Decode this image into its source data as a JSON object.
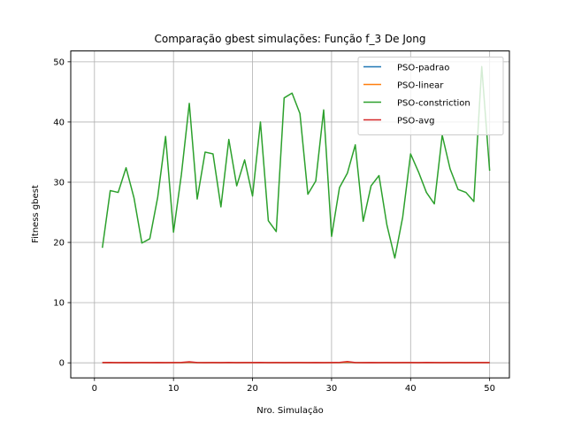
{
  "chart_data": {
    "type": "line",
    "title": "Comparação gbest simulações: Função f_3 De Jong",
    "xlabel": "Nro. Simulação",
    "ylabel": "Fitness gbest",
    "xlim": [
      -3,
      52.5
    ],
    "ylim": [
      -2.5,
      51.8
    ],
    "xticks": [
      0,
      10,
      20,
      30,
      40,
      50
    ],
    "yticks": [
      0,
      10,
      20,
      30,
      40,
      50
    ],
    "grid": true,
    "legend_position": "top-right",
    "series": [
      {
        "name": "PSO-padrao",
        "color": "#1f77b4",
        "x": [
          1,
          2,
          3,
          4,
          5,
          6,
          7,
          8,
          9,
          10,
          11,
          12,
          13,
          14,
          15,
          16,
          17,
          18,
          19,
          20,
          21,
          22,
          23,
          24,
          25,
          26,
          27,
          28,
          29,
          30,
          31,
          32,
          33,
          34,
          35,
          36,
          37,
          38,
          39,
          40,
          41,
          42,
          43,
          44,
          45,
          46,
          47,
          48,
          49,
          50
        ],
        "values": [
          0.02,
          0.02,
          0.02,
          0.02,
          0.02,
          0.02,
          0.02,
          0.02,
          0.02,
          0.02,
          0.02,
          0.05,
          0.02,
          0.02,
          0.02,
          0.02,
          0.02,
          0.02,
          0.02,
          0.02,
          0.02,
          0.02,
          0.02,
          0.02,
          0.02,
          0.02,
          0.02,
          0.02,
          0.02,
          0.02,
          0.02,
          0.05,
          0.02,
          0.02,
          0.02,
          0.02,
          0.02,
          0.02,
          0.02,
          0.02,
          0.02,
          0.02,
          0.02,
          0.02,
          0.02,
          0.02,
          0.02,
          0.02,
          0.02,
          0.02
        ]
      },
      {
        "name": "PSO-linear",
        "color": "#ff7f0e",
        "x": [
          1,
          2,
          3,
          4,
          5,
          6,
          7,
          8,
          9,
          10,
          11,
          12,
          13,
          14,
          15,
          16,
          17,
          18,
          19,
          20,
          21,
          22,
          23,
          24,
          25,
          26,
          27,
          28,
          29,
          30,
          31,
          32,
          33,
          34,
          35,
          36,
          37,
          38,
          39,
          40,
          41,
          42,
          43,
          44,
          45,
          46,
          47,
          48,
          49,
          50
        ],
        "values": [
          0.03,
          0.03,
          0.03,
          0.03,
          0.03,
          0.03,
          0.03,
          0.03,
          0.03,
          0.03,
          0.03,
          0.08,
          0.03,
          0.03,
          0.03,
          0.03,
          0.03,
          0.03,
          0.03,
          0.03,
          0.03,
          0.03,
          0.03,
          0.03,
          0.03,
          0.03,
          0.03,
          0.03,
          0.03,
          0.03,
          0.03,
          0.1,
          0.03,
          0.03,
          0.03,
          0.03,
          0.03,
          0.03,
          0.03,
          0.03,
          0.03,
          0.03,
          0.03,
          0.03,
          0.03,
          0.03,
          0.03,
          0.03,
          0.03,
          0.03
        ]
      },
      {
        "name": "PSO-constriction",
        "color": "#2ca02c",
        "x": [
          1,
          2,
          3,
          4,
          5,
          6,
          7,
          8,
          9,
          10,
          11,
          12,
          13,
          14,
          15,
          16,
          17,
          18,
          19,
          20,
          21,
          22,
          23,
          24,
          25,
          26,
          27,
          28,
          29,
          30,
          31,
          32,
          33,
          34,
          35,
          36,
          37,
          38,
          39,
          40,
          41,
          42,
          43,
          44,
          45,
          46,
          47,
          48,
          49,
          50
        ],
        "values": [
          19.1,
          28.6,
          28.3,
          32.4,
          27.4,
          19.9,
          20.6,
          27.5,
          37.6,
          21.7,
          31.3,
          43.1,
          27.2,
          35.0,
          34.7,
          25.9,
          37.1,
          29.4,
          33.7,
          27.7,
          40.0,
          23.6,
          21.8,
          44.0,
          44.8,
          41.4,
          28.0,
          30.2,
          42.0,
          21.0,
          29.1,
          31.5,
          36.2,
          23.5,
          29.4,
          31.1,
          22.9,
          17.4,
          24.2,
          34.7,
          31.7,
          28.3,
          26.4,
          37.8,
          32.2,
          28.8,
          28.3,
          26.8,
          49.2,
          31.9
        ]
      },
      {
        "name": "PSO-avg",
        "color": "#d62728",
        "x": [
          1,
          2,
          3,
          4,
          5,
          6,
          7,
          8,
          9,
          10,
          11,
          12,
          13,
          14,
          15,
          16,
          17,
          18,
          19,
          20,
          21,
          22,
          23,
          24,
          25,
          26,
          27,
          28,
          29,
          30,
          31,
          32,
          33,
          34,
          35,
          36,
          37,
          38,
          39,
          40,
          41,
          42,
          43,
          44,
          45,
          46,
          47,
          48,
          49,
          50
        ],
        "values": [
          0.04,
          0.06,
          0.03,
          0.05,
          0.03,
          0.04,
          0.03,
          0.05,
          0.03,
          0.04,
          0.06,
          0.18,
          0.04,
          0.03,
          0.04,
          0.03,
          0.06,
          0.03,
          0.04,
          0.05,
          0.07,
          0.03,
          0.04,
          0.03,
          0.05,
          0.04,
          0.03,
          0.05,
          0.03,
          0.04,
          0.06,
          0.22,
          0.04,
          0.03,
          0.05,
          0.03,
          0.04,
          0.03,
          0.05,
          0.04,
          0.03,
          0.06,
          0.04,
          0.03,
          0.05,
          0.04,
          0.03,
          0.04,
          0.05,
          0.04
        ]
      }
    ]
  }
}
